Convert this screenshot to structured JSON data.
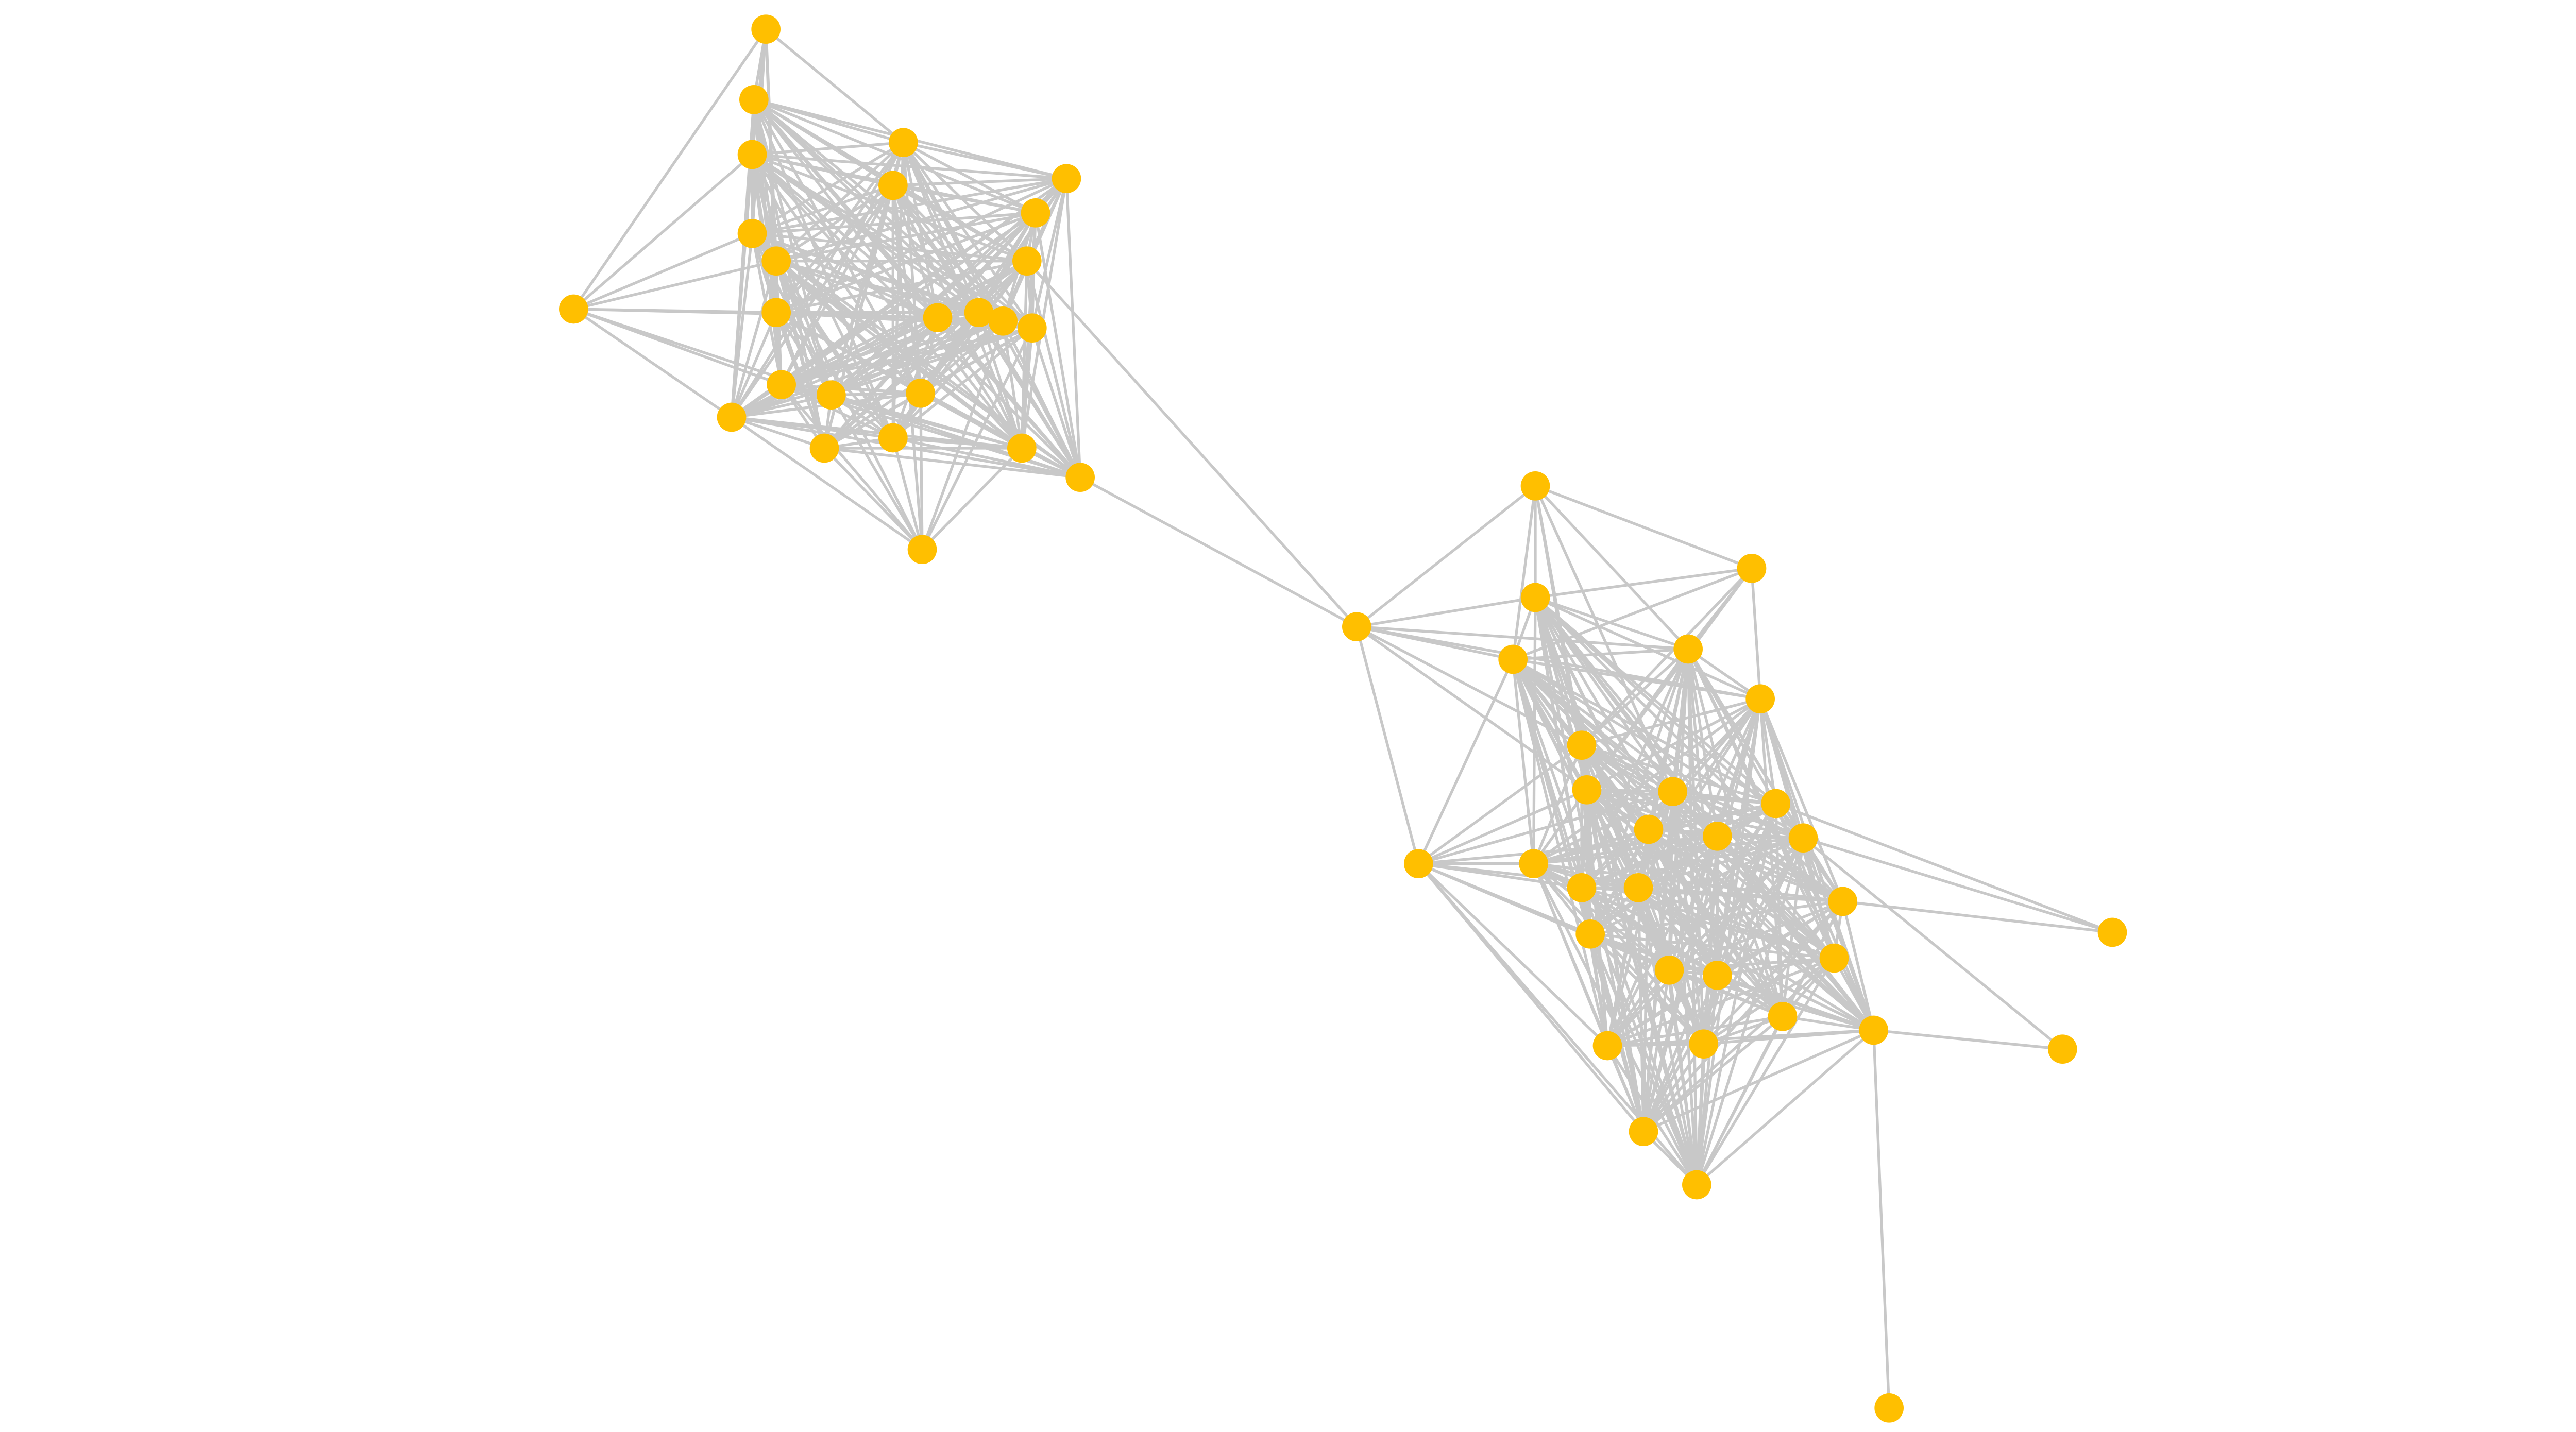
{
  "diagram": {
    "type": "network-graph",
    "colors": {
      "node": "#FFBF00",
      "edge": "#C8C8C8",
      "background": "#FFFFFF"
    },
    "nodes": [
      "a1",
      "a2",
      "a3",
      "a4",
      "a5",
      "a6",
      "a7",
      "a8",
      "a9",
      "a10",
      "a11",
      "a12",
      "a13",
      "a14",
      "a15",
      "a16",
      "a17",
      "a18",
      "a19",
      "a20",
      "a21",
      "a22",
      "a23",
      "a24",
      "a25",
      "b",
      "c1",
      "c2",
      "c3",
      "c4",
      "c5",
      "c6",
      "c7",
      "c8",
      "c9",
      "c10",
      "c11",
      "c12",
      "c13",
      "c14",
      "c15",
      "c16",
      "c17",
      "c18",
      "c19",
      "c20",
      "c21",
      "c22",
      "c23",
      "c24",
      "c25",
      "c26",
      "c27",
      "c28",
      "c29",
      "c30",
      "c31"
    ],
    "dense_groups": [
      [
        "a2",
        "a3",
        "a4",
        "a5",
        "a6",
        "a7",
        "a8",
        "a9",
        "a10",
        "a12",
        "a13",
        "a14",
        "a15",
        "a16",
        "a17",
        "a18",
        "a19",
        "a20",
        "a21",
        "a22",
        "a23",
        "a24"
      ],
      [
        "c3",
        "c4",
        "c5",
        "c6",
        "c7",
        "c8",
        "c9",
        "c10",
        "c11",
        "c12",
        "c13",
        "c15",
        "c16",
        "c17",
        "c18",
        "c19",
        "c20",
        "c21",
        "c22",
        "c23",
        "c24",
        "c25",
        "c26",
        "c27",
        "c28"
      ]
    ],
    "edges": [
      [
        "a1",
        "a2"
      ],
      [
        "a1",
        "a3"
      ],
      [
        "a1",
        "a4"
      ],
      [
        "a1",
        "a8"
      ],
      [
        "a1",
        "a9"
      ],
      [
        "a1",
        "a11"
      ],
      [
        "a1",
        "a12"
      ],
      [
        "a11",
        "a3"
      ],
      [
        "a11",
        "a8"
      ],
      [
        "a11",
        "a9"
      ],
      [
        "a11",
        "a12"
      ],
      [
        "a11",
        "a17"
      ],
      [
        "a11",
        "a20"
      ],
      [
        "a11",
        "a18"
      ],
      [
        "a11",
        "a13"
      ],
      [
        "a25",
        "a20"
      ],
      [
        "a25",
        "a21"
      ],
      [
        "a25",
        "a17"
      ],
      [
        "a25",
        "a18"
      ],
      [
        "a25",
        "a19"
      ],
      [
        "a25",
        "a22"
      ],
      [
        "a25",
        "a23"
      ],
      [
        "a25",
        "a16"
      ],
      [
        "a25",
        "a10"
      ],
      [
        "a25",
        "a5"
      ],
      [
        "a25",
        "a9"
      ],
      [
        "b",
        "a24"
      ],
      [
        "b",
        "a10"
      ],
      [
        "b",
        "c1"
      ],
      [
        "b",
        "c3"
      ],
      [
        "b",
        "c4"
      ],
      [
        "b",
        "c14"
      ],
      [
        "b",
        "c8"
      ],
      [
        "b",
        "c7"
      ],
      [
        "b",
        "c6"
      ],
      [
        "b",
        "c5"
      ],
      [
        "c14",
        "c4"
      ],
      [
        "c14",
        "c7"
      ],
      [
        "c14",
        "c8"
      ],
      [
        "c14",
        "c9"
      ],
      [
        "c14",
        "c15"
      ],
      [
        "c14",
        "c16"
      ],
      [
        "c14",
        "c17"
      ],
      [
        "c14",
        "c19"
      ],
      [
        "c14",
        "c25"
      ],
      [
        "c14",
        "c27"
      ],
      [
        "c14",
        "c28"
      ],
      [
        "c14",
        "c21"
      ],
      [
        "c14",
        "c12"
      ],
      [
        "c1",
        "c2"
      ],
      [
        "c1",
        "c3"
      ],
      [
        "c1",
        "c4"
      ],
      [
        "c1",
        "c5"
      ],
      [
        "c1",
        "c7"
      ],
      [
        "c1",
        "c8"
      ],
      [
        "c1",
        "c9"
      ],
      [
        "c2",
        "c3"
      ],
      [
        "c2",
        "c4"
      ],
      [
        "c2",
        "c5"
      ],
      [
        "c2",
        "c6"
      ],
      [
        "c2",
        "c7"
      ],
      [
        "c2",
        "c8"
      ],
      [
        "c29",
        "c13"
      ],
      [
        "c29",
        "c10"
      ],
      [
        "c29",
        "c18"
      ],
      [
        "c30",
        "c24"
      ],
      [
        "c30",
        "c13"
      ],
      [
        "c31",
        "c24"
      ]
    ]
  }
}
